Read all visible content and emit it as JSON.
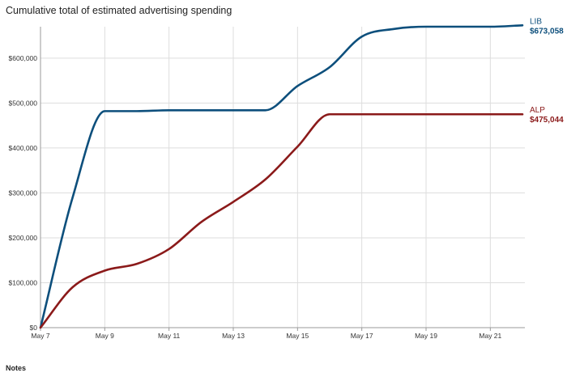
{
  "chart_data": {
    "type": "line",
    "title": "Cumulative total of estimated advertising spending",
    "xlabel": "",
    "ylabel": "",
    "x_ticks": [
      "May 7",
      "May 9",
      "May 11",
      "May 13",
      "May 15",
      "May 17",
      "May 19",
      "May 21"
    ],
    "x": [
      "May 7",
      "May 8",
      "May 9",
      "May 10",
      "May 11",
      "May 12",
      "May 13",
      "May 14",
      "May 15",
      "May 16",
      "May 17",
      "May 18",
      "May 19",
      "May 20",
      "May 21",
      "May 22"
    ],
    "ylim": [
      0,
      670000
    ],
    "y_ticks": [
      0,
      100000,
      200000,
      300000,
      400000,
      500000,
      600000
    ],
    "y_tick_labels": [
      "$0",
      "$100,000",
      "$200,000",
      "$300,000",
      "$400,000",
      "$500,000",
      "$600,000"
    ],
    "grid": true,
    "series": [
      {
        "name": "LIB",
        "end_label": "$673,058",
        "color": "#0d4f7c",
        "values": [
          0,
          290000,
          482000,
          482000,
          484000,
          484000,
          484000,
          484000,
          538000,
          580000,
          648000,
          665000,
          670000,
          670000,
          670000,
          673058
        ]
      },
      {
        "name": "ALP",
        "end_label": "$475,044",
        "color": "#8b1a1a",
        "values": [
          0,
          90000,
          127000,
          142000,
          175000,
          235000,
          280000,
          330000,
          403000,
          475044,
          475044,
          475044,
          475044,
          475044,
          475044,
          475044
        ]
      }
    ]
  },
  "notes": {
    "label": "Notes"
  }
}
